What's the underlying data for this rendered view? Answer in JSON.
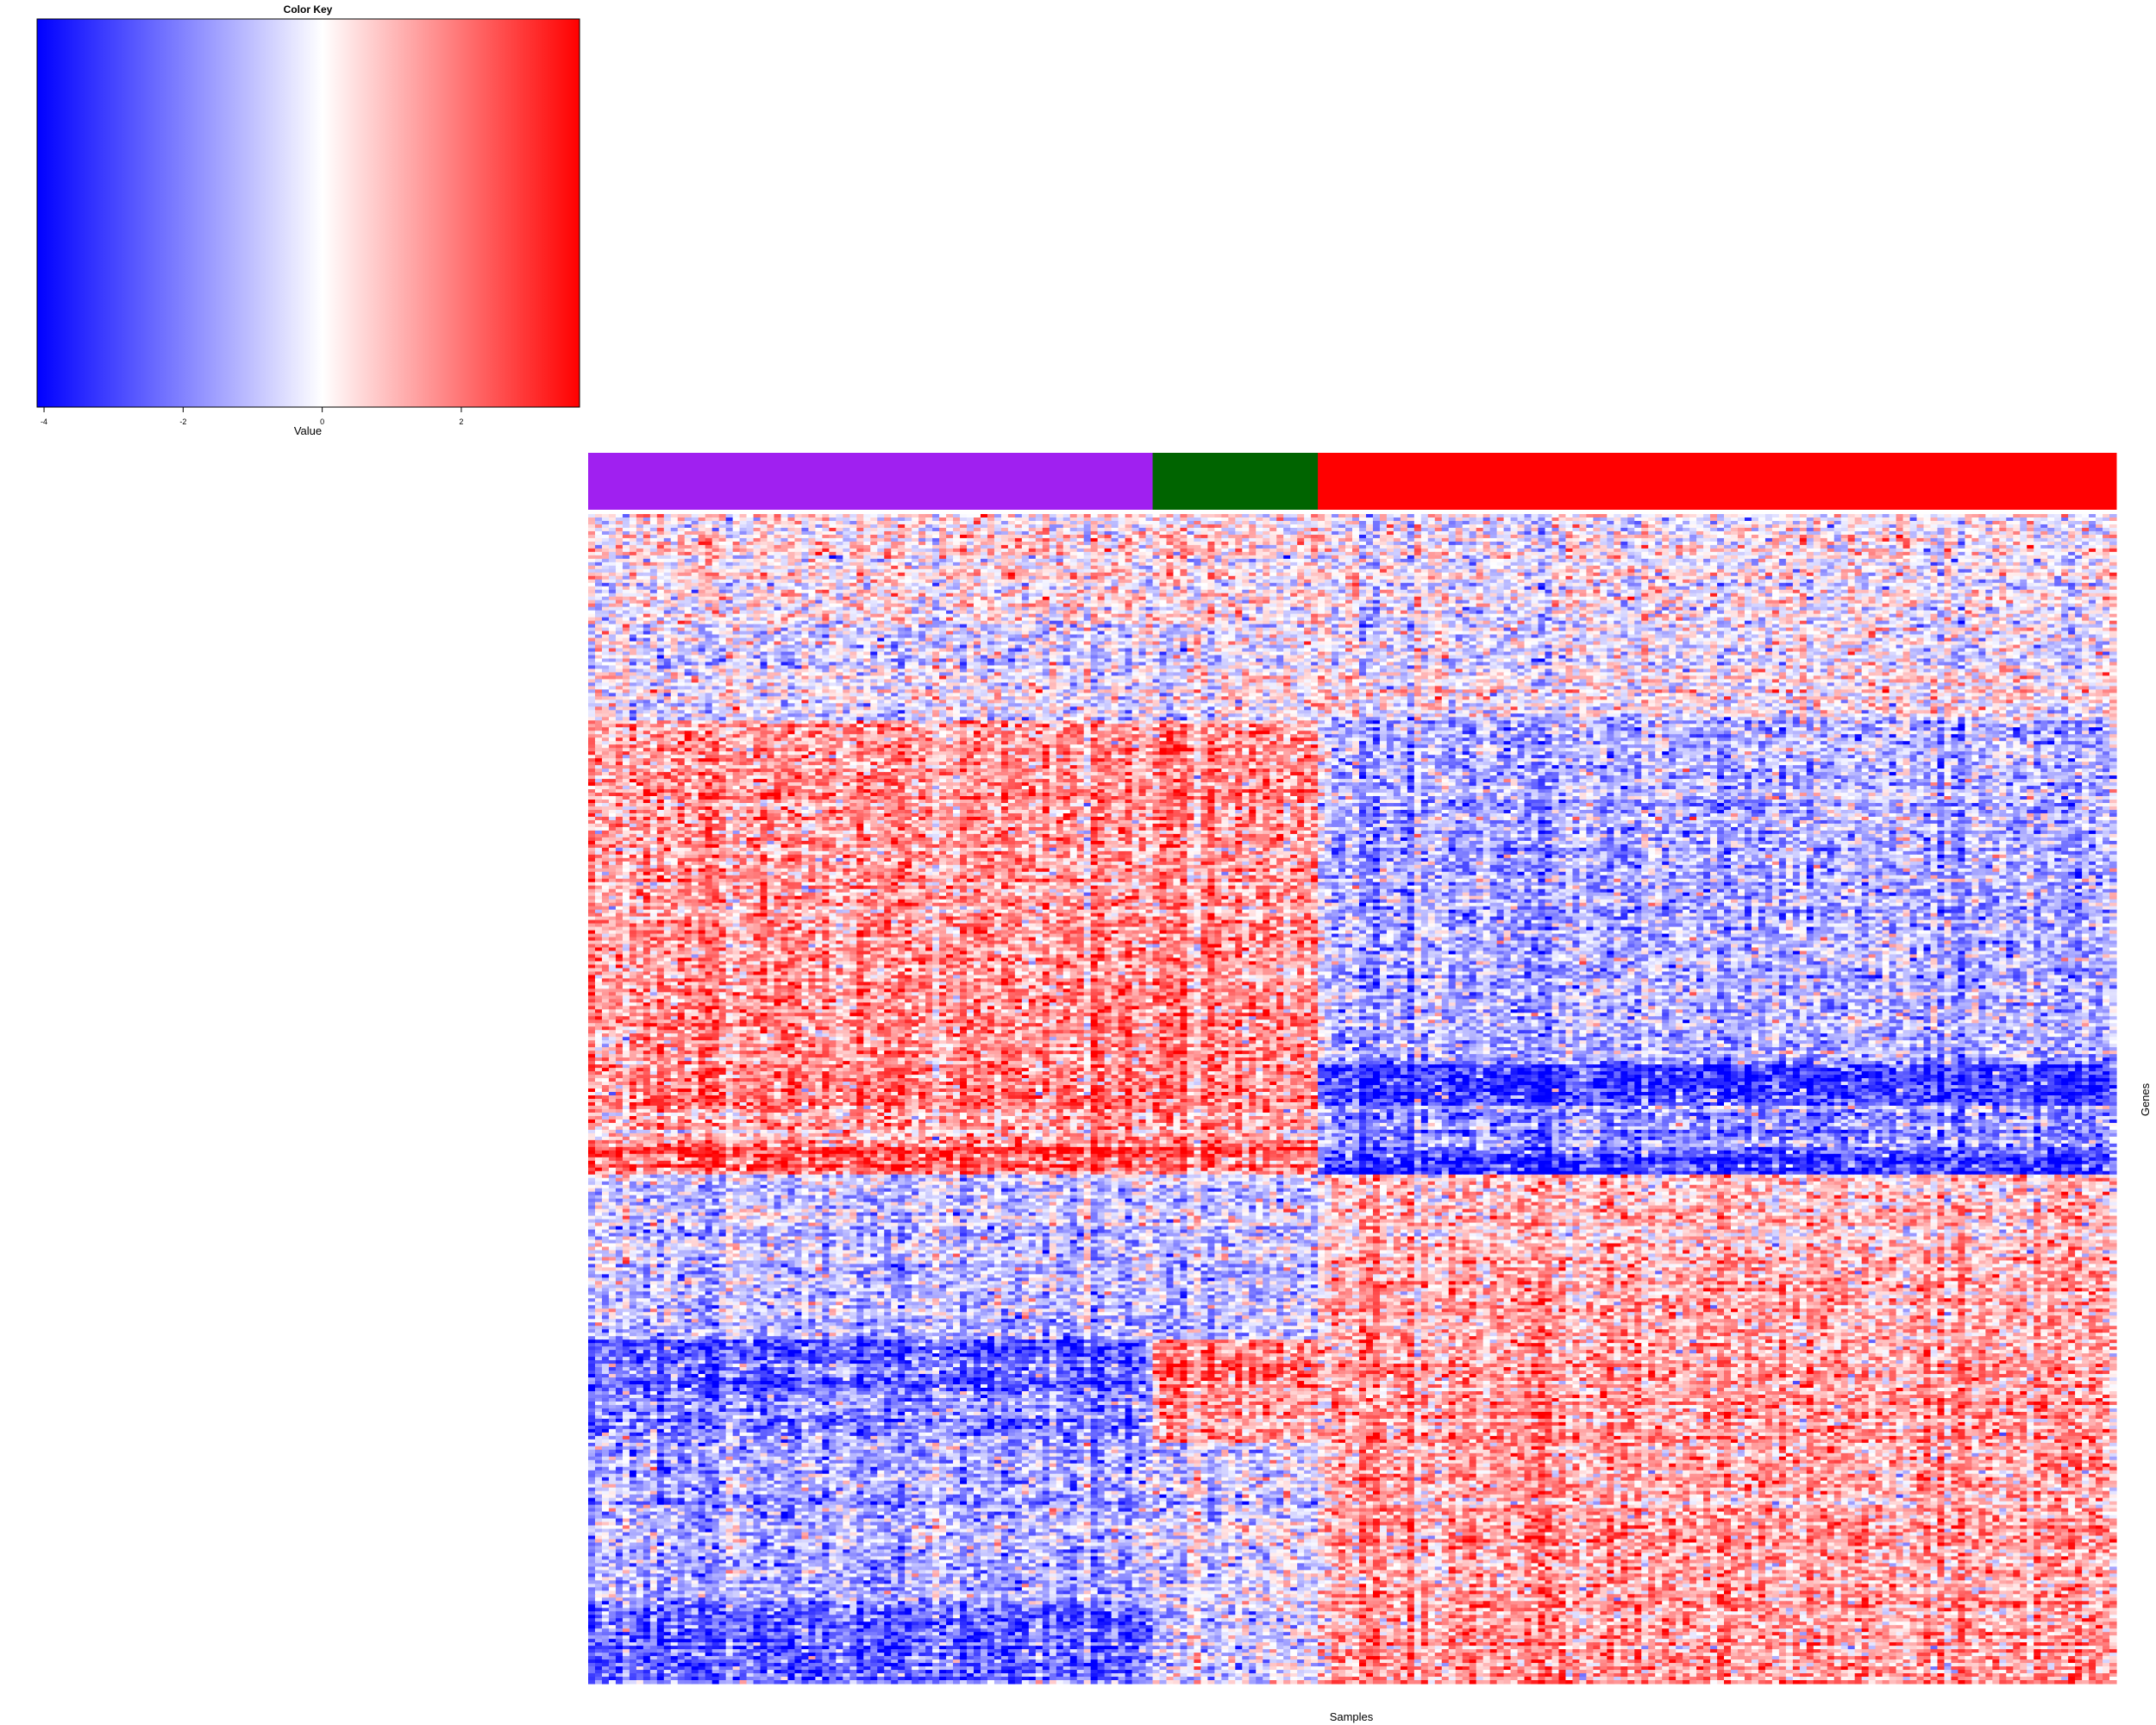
{
  "chart_data": {
    "type": "heatmap",
    "xlabel": "Samples",
    "ylabel": "Genes",
    "color_key": {
      "title": "Color Key",
      "label": "Value",
      "range": [
        -4.1,
        3.7
      ],
      "ticks": [
        -4,
        -2,
        0,
        2
      ],
      "tick_labels": [
        "-4",
        "-2",
        "0",
        "2"
      ],
      "low_color": "#0000ff",
      "mid_color": "#ffffff",
      "high_color": "#ff0000",
      "mid_value": 0
    },
    "column_groups": [
      {
        "color": "#a020f0",
        "n_samples": 82
      },
      {
        "color": "#006400",
        "n_samples": 24
      },
      {
        "color": "#ff0000",
        "n_samples": 116
      }
    ],
    "n_genes": 340,
    "gene_blocks": [
      {
        "rows": 32,
        "means": [
          0.3,
          0.3,
          -0.1
        ]
      },
      {
        "rows": 28,
        "means": [
          -0.4,
          -0.2,
          -0.1
        ]
      },
      {
        "rows": 100,
        "means": [
          1.4,
          1.4,
          -1.3
        ]
      },
      {
        "rows": 12,
        "means": [
          1.9,
          1.6,
          -3.2
        ]
      },
      {
        "rows": 12,
        "means": [
          1.3,
          1.3,
          -1.6
        ]
      },
      {
        "rows": 8,
        "means": [
          2.6,
          2.2,
          -3.0
        ]
      },
      {
        "rows": 24,
        "means": [
          -0.9,
          -0.7,
          0.8
        ]
      },
      {
        "rows": 24,
        "means": [
          -1.1,
          -1.0,
          1.1
        ]
      },
      {
        "rows": 14,
        "means": [
          -2.7,
          1.8,
          1.2
        ]
      },
      {
        "rows": 16,
        "means": [
          -2.0,
          1.2,
          1.3
        ]
      },
      {
        "rows": 46,
        "means": [
          -1.3,
          -0.5,
          1.2
        ]
      },
      {
        "rows": 24,
        "means": [
          -2.4,
          -0.5,
          1.5
        ]
      }
    ]
  }
}
